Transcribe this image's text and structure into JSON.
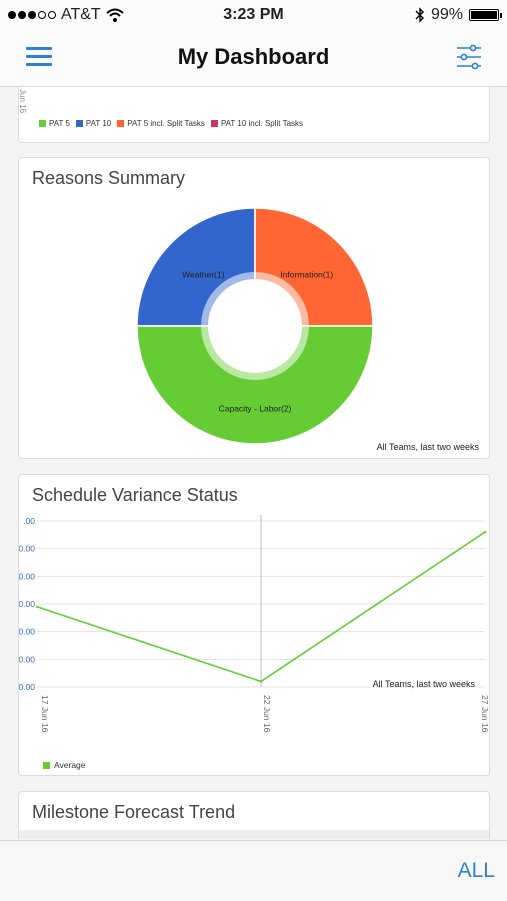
{
  "status_bar": {
    "carrier": "AT&T",
    "time": "3:23 PM",
    "battery": "99%",
    "battery_level": 0.99,
    "signal_bars_filled": 3,
    "signal_bars_total": 5
  },
  "nav": {
    "title": "My Dashboard",
    "menu_icon": "hamburger-menu-icon",
    "filter_icon": "sliders-filter-icon"
  },
  "top_card": {
    "axis_fragment": "Jun 16",
    "legend": [
      {
        "name": "PAT 5",
        "color": "#66cc33"
      },
      {
        "name": "PAT 10",
        "color": "#3366cc"
      },
      {
        "name": "PAT 5 incl. Split Tasks",
        "color": "#ff6633"
      },
      {
        "name": "PAT 10 incl. Split Tasks",
        "color": "#cc3366"
      }
    ]
  },
  "reasons": {
    "title": "Reasons Summary",
    "note": "All Teams, last two weeks"
  },
  "variance": {
    "title": "Schedule Variance Status",
    "note": "All Teams, last two weeks"
  },
  "milestone": {
    "title": "Milestone Forecast Trend"
  },
  "bottom": {
    "all_label": "ALL"
  },
  "colors": {
    "accent": "#2f7fd6",
    "green": "#66cc33",
    "blue": "#3366cc",
    "orange": "#ff6633",
    "tick_blue": "#3366cc"
  },
  "chart_data": [
    {
      "type": "pie",
      "title": "Reasons Summary",
      "labels": [
        "Weather(1)",
        "Information(1)",
        "Capacity - Labor(2)"
      ],
      "values": [
        1,
        1,
        2
      ],
      "colors": [
        "#3366cc",
        "#ff6633",
        "#66cc33"
      ]
    },
    {
      "type": "line",
      "title": "Schedule Variance Status",
      "x": [
        "17 Jun 16",
        "22 Jun 16",
        "27 Jun 16"
      ],
      "series": [
        {
          "name": "Average",
          "values": [
            0.58,
            0.04,
            1.12
          ],
          "color": "#66cc33"
        }
      ],
      "ytick_labels": [
        ".00",
        "0.00",
        "0.00",
        "0.00",
        "0.00",
        "0.00",
        "0.00"
      ],
      "ylim": [
        0,
        1.2
      ],
      "grid": true,
      "legend": "bottom-left"
    }
  ]
}
